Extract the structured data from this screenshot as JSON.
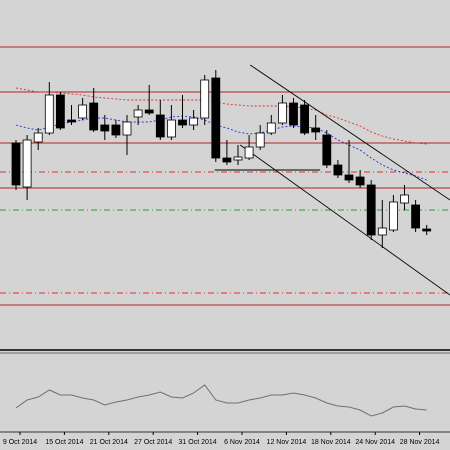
{
  "chart_data": {
    "type": "candlestick",
    "categories": [
      "9 Oct 2014",
      null,
      null,
      null,
      "15 Oct 2014",
      null,
      null,
      null,
      "21 Oct 2014",
      null,
      null,
      null,
      "27 Oct 2014",
      null,
      null,
      null,
      "31 Oct 2014",
      null,
      null,
      null,
      "6 Nov 2014",
      null,
      null,
      null,
      "12 Nov 2014",
      null,
      null,
      null,
      "18 Nov 2014",
      null,
      null,
      null,
      "24 Nov 2014",
      null,
      null,
      null,
      "28 Nov 2014",
      null
    ],
    "open": [
      207,
      163,
      208,
      217,
      255,
      230,
      232,
      247,
      225,
      225,
      215,
      233,
      240,
      235,
      213,
      230,
      225,
      232,
      272,
      192,
      190,
      192,
      203,
      217,
      227,
      247,
      245,
      222,
      215,
      185,
      175,
      173,
      165,
      115,
      120,
      147,
      145,
      121
    ],
    "high": [
      210,
      215,
      222,
      268,
      258,
      245,
      252,
      262,
      235,
      230,
      235,
      245,
      265,
      250,
      245,
      255,
      240,
      275,
      280,
      210,
      205,
      215,
      225,
      235,
      255,
      252,
      250,
      235,
      220,
      190,
      210,
      180,
      170,
      150,
      155,
      165,
      150,
      125
    ],
    "low": [
      160,
      150,
      200,
      215,
      220,
      225,
      230,
      218,
      210,
      212,
      195,
      225,
      235,
      210,
      210,
      222,
      220,
      225,
      188,
      185,
      185,
      190,
      200,
      215,
      225,
      222,
      215,
      210,
      182,
      172,
      167,
      162,
      110,
      102,
      118,
      140,
      118,
      115
    ],
    "close": [
      165,
      210,
      217,
      255,
      222,
      228,
      245,
      220,
      219,
      215,
      228,
      240,
      237,
      213,
      230,
      225,
      232,
      270,
      192,
      188,
      193,
      203,
      217,
      227,
      247,
      225,
      217,
      218,
      185,
      175,
      170,
      165,
      115,
      122,
      148,
      155,
      122,
      119
    ],
    "up_color": "#ffffff",
    "down_color": "#000000",
    "ylim": [
      0,
      350
    ],
    "series": [
      {
        "color": "#e03030",
        "values": [
          262,
          260,
          258,
          258,
          257,
          256,
          255,
          253,
          252,
          251,
          250,
          250,
          250,
          250,
          250,
          250,
          250,
          250,
          248,
          246,
          245,
          244,
          244,
          244,
          244,
          243,
          242,
          240,
          235,
          232,
          228,
          224,
          218,
          214,
          211,
          209,
          207,
          206
        ]
      },
      {
        "color": "#2030e0",
        "values": [
          225,
          222,
          220,
          223,
          226,
          228,
          230,
          232,
          232,
          230,
          228,
          228,
          228,
          230,
          233,
          234,
          233,
          230,
          225,
          222,
          218,
          216,
          217,
          220,
          223,
          224,
          223,
          222,
          217,
          210,
          205,
          200,
          192,
          185,
          180,
          177,
          174,
          170
        ]
      }
    ],
    "levels": [
      {
        "value": 303,
        "color": "#b22222",
        "style": "solid"
      },
      {
        "value": 258,
        "color": "#b22222",
        "style": "solid"
      },
      {
        "value": 207,
        "color": "#b22222",
        "style": "solid"
      },
      {
        "value": 162,
        "color": "#b22222",
        "style": "solid"
      },
      {
        "value": 45,
        "color": "#b22222",
        "style": "solid"
      },
      {
        "value": 178,
        "color": "#e03030",
        "style": "dashdot"
      },
      {
        "value": 57,
        "color": "#e03030",
        "style": "dashdot"
      },
      {
        "value": 140,
        "color": "#2ca02c",
        "style": "dashdot"
      }
    ],
    "trendlines": [
      {
        "x": [
          21.1,
          39.1
        ],
        "y": [
          285,
          150
        ],
        "color": "#000000"
      },
      {
        "x": [
          20.2,
          39.1
        ],
        "y": [
          205,
          55
        ],
        "color": "#000000"
      },
      {
        "x": [
          17.9,
          27.4
        ],
        "y": [
          180,
          180
        ],
        "color": "#000000"
      }
    ],
    "indicator": {
      "color": "#707070",
      "ylim": [
        0,
        77
      ],
      "values": [
        24,
        32,
        35,
        42,
        37,
        37,
        34,
        32,
        27,
        30,
        32,
        35,
        37,
        40,
        35,
        34,
        39,
        47,
        32,
        29,
        29,
        32,
        34,
        37,
        37,
        39,
        37,
        34,
        29,
        26,
        25,
        22,
        16,
        19,
        25,
        26,
        23,
        22
      ]
    }
  }
}
